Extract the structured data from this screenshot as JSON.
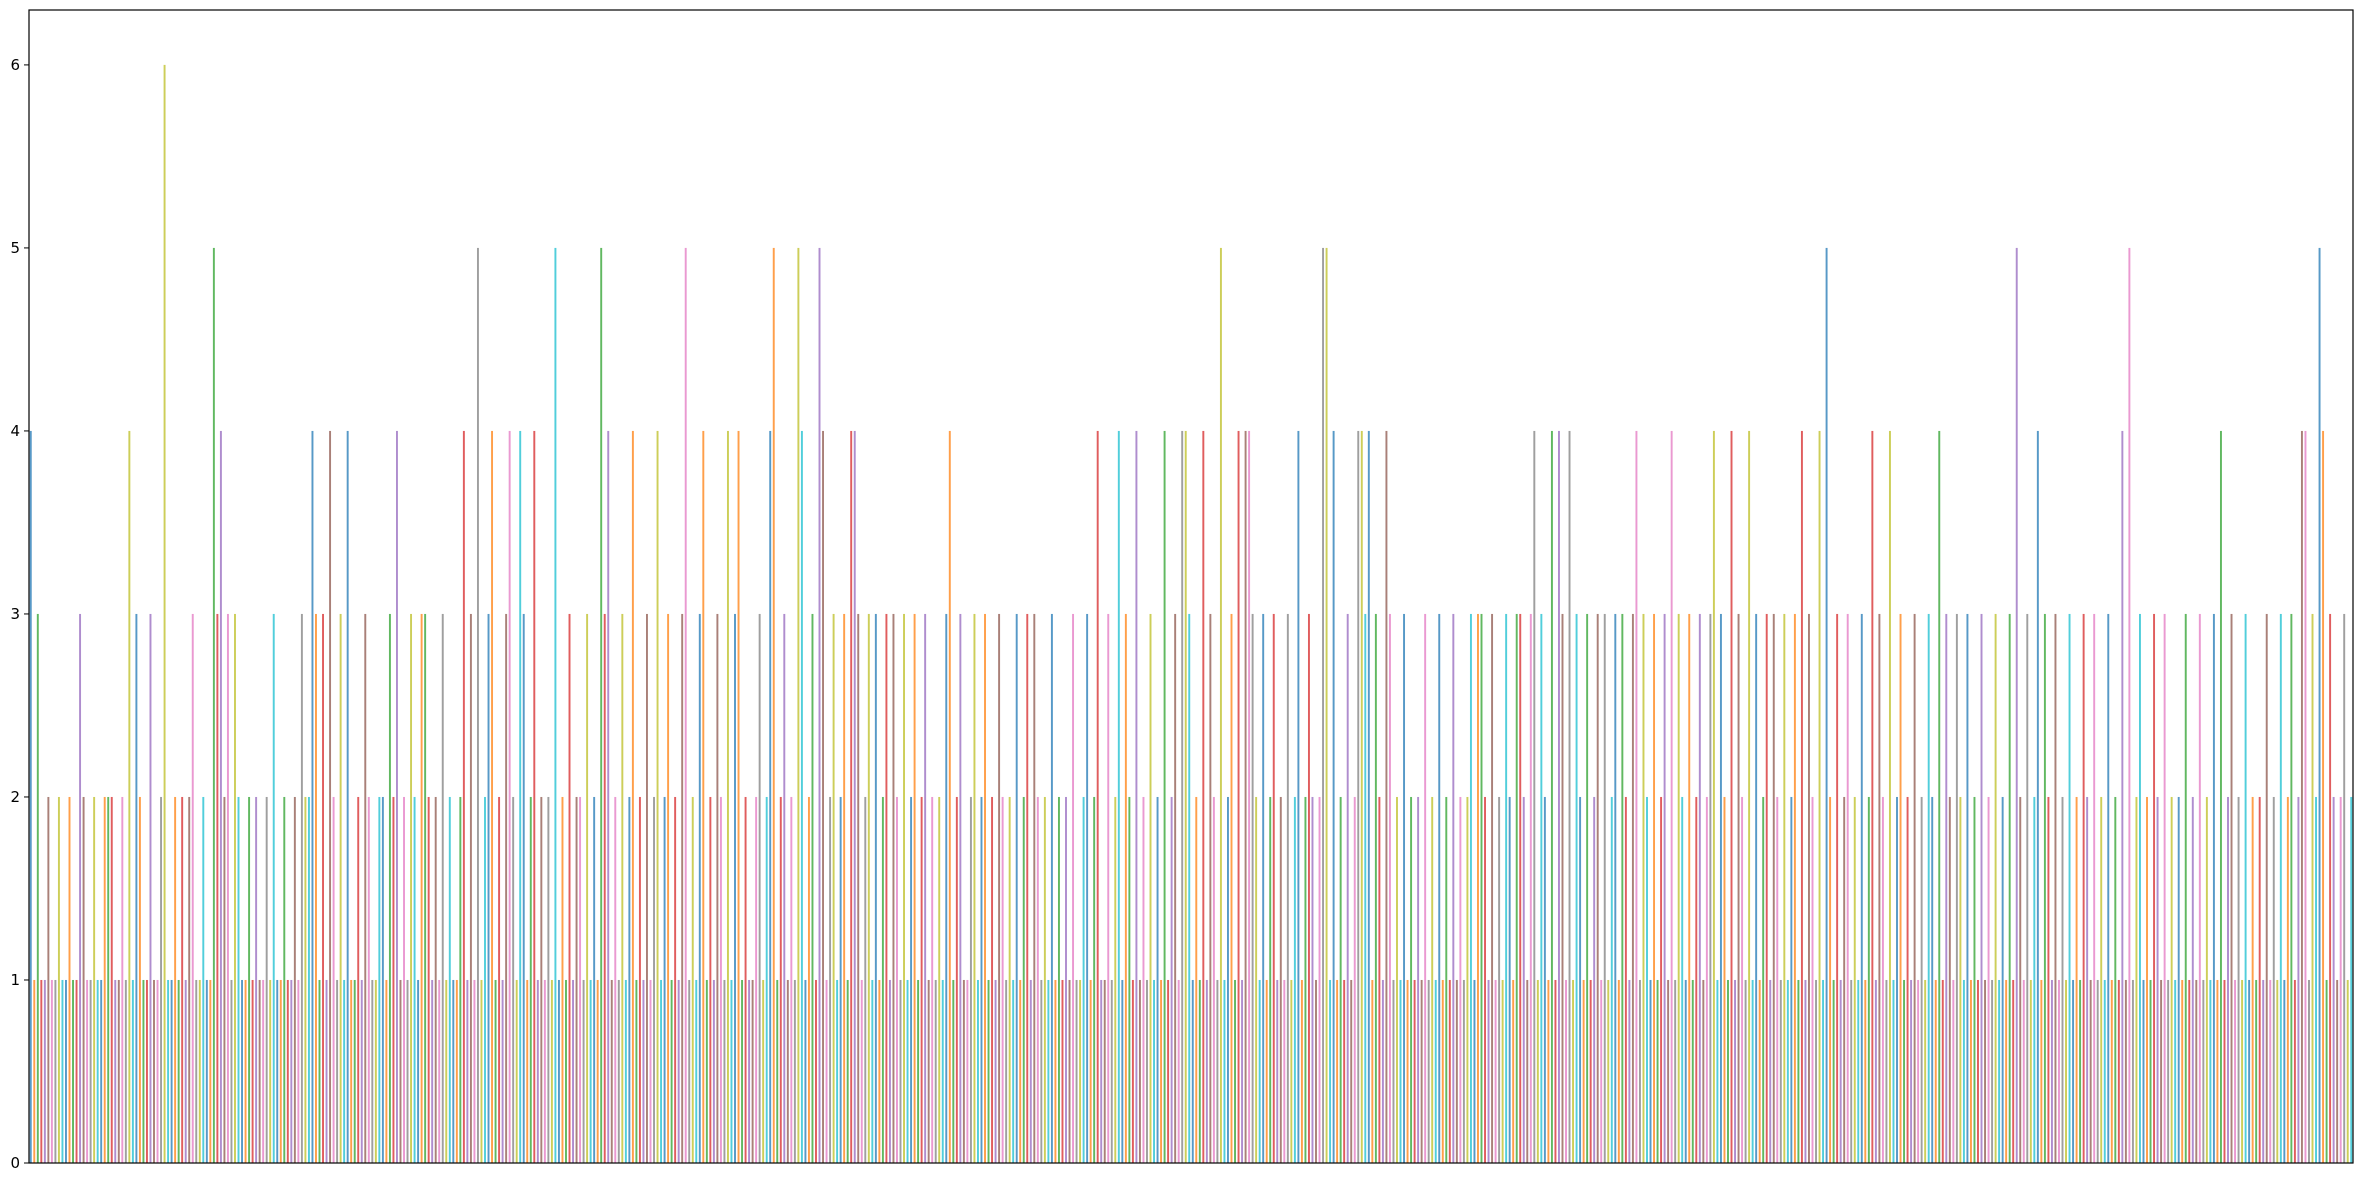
{
  "chart_data": {
    "type": "bar",
    "title": "",
    "xlabel": "",
    "ylabel": "",
    "ylim": [
      0,
      6.3
    ],
    "xticks_visible": false,
    "grid": false,
    "legend": "none",
    "yticks": [
      {
        "value": 0,
        "label": "0"
      },
      {
        "value": 1,
        "label": "1"
      },
      {
        "value": 2,
        "label": "2"
      },
      {
        "value": 3,
        "label": "3"
      },
      {
        "value": 4,
        "label": "4"
      },
      {
        "value": 5,
        "label": "5"
      },
      {
        "value": 6,
        "label": "6"
      }
    ],
    "palette": [
      "#1f77b4",
      "#ff7f0e",
      "#2ca02c",
      "#d62728",
      "#9467bd",
      "#8c564b",
      "#e377c2",
      "#7f7f7f",
      "#bcbd22",
      "#17becf"
    ],
    "values": [
      4,
      1,
      3,
      1,
      1,
      2,
      1,
      1,
      2,
      1,
      1,
      2,
      1,
      1,
      3,
      2,
      1,
      1,
      2,
      1,
      1,
      2,
      2,
      2,
      1,
      1,
      2,
      1,
      4,
      1,
      3,
      2,
      1,
      1,
      3,
      1,
      1,
      2,
      6,
      1,
      1,
      2,
      1,
      2,
      1,
      2,
      3,
      1,
      1,
      2,
      1,
      1,
      5,
      3,
      4,
      2,
      3,
      1,
      3,
      2,
      1,
      1,
      2,
      1,
      2,
      1,
      1,
      2,
      1,
      3,
      1,
      1,
      2,
      1,
      1,
      2,
      1,
      3,
      2,
      2,
      4,
      3,
      1,
      3,
      1,
      4,
      2,
      1,
      3,
      1,
      4,
      1,
      1,
      2,
      1,
      3,
      2,
      1,
      1,
      2,
      2,
      1,
      3,
      2,
      4,
      1,
      2,
      1,
      3,
      2,
      1,
      3,
      3,
      2,
      1,
      2,
      1,
      3,
      1,
      2,
      1,
      1,
      2,
      4,
      1,
      3,
      1,
      5,
      1,
      2,
      3,
      4,
      1,
      2,
      1,
      3,
      4,
      2,
      1,
      4,
      3,
      1,
      2,
      4,
      1,
      2,
      1,
      2,
      1,
      5,
      1,
      2,
      1,
      3,
      1,
      2,
      2,
      1,
      3,
      1,
      2,
      1,
      5,
      3,
      4,
      1,
      2,
      1,
      3,
      1,
      2,
      4,
      1,
      2,
      1,
      3,
      1,
      2,
      4,
      1,
      2,
      3,
      1,
      2,
      1,
      3,
      5,
      1,
      2,
      1,
      3,
      4,
      1,
      2,
      1,
      3,
      2,
      1,
      4,
      1,
      3,
      4,
      1,
      2,
      1,
      1,
      2,
      3,
      1,
      2,
      4,
      5,
      1,
      2,
      3,
      1,
      2,
      1,
      5,
      4,
      1,
      2,
      3,
      1,
      5,
      4,
      1,
      2,
      3,
      1,
      2,
      3,
      1,
      4,
      4,
      3,
      1,
      2,
      3,
      1,
      3,
      1,
      2,
      3,
      1,
      3,
      2,
      1,
      3,
      1,
      2,
      3,
      1,
      2,
      3,
      1,
      2,
      1,
      2,
      1,
      3,
      4,
      1,
      2,
      3,
      1,
      1,
      2,
      3,
      1,
      2,
      3,
      1,
      2,
      1,
      3,
      2,
      1,
      2,
      1,
      3,
      1,
      2,
      3,
      1,
      3,
      2,
      1,
      2,
      1,
      3,
      1,
      2,
      1,
      2,
      1,
      3,
      1,
      1,
      2,
      3,
      1,
      2,
      4,
      1,
      1,
      3,
      1,
      2,
      4,
      1,
      3,
      2,
      1,
      4,
      1,
      2,
      1,
      3,
      1,
      2,
      1,
      4,
      1,
      2,
      3,
      1,
      4,
      4,
      3,
      1,
      2,
      1,
      4,
      1,
      3,
      2,
      1,
      5,
      1,
      2,
      3,
      1,
      4,
      1,
      4,
      4,
      3,
      2,
      1,
      3,
      1,
      2,
      3,
      1,
      2,
      1,
      3,
      1,
      2,
      4,
      1,
      2,
      3,
      2,
      1,
      2,
      5,
      5,
      1,
      4,
      1,
      2,
      1,
      3,
      1,
      2,
      4,
      4,
      3,
      4,
      1,
      3,
      2,
      1,
      4,
      3,
      1,
      2,
      1,
      3,
      1,
      2,
      1,
      2,
      1,
      3,
      1,
      2,
      1,
      3,
      1,
      2,
      1,
      3,
      1,
      2,
      1,
      2,
      3,
      1,
      3,
      3,
      2,
      1,
      3,
      1,
      2,
      1,
      3,
      2,
      1,
      3,
      3,
      2,
      1,
      3,
      4,
      1,
      3,
      2,
      1,
      4,
      1,
      4,
      3,
      1,
      4,
      1,
      3,
      2,
      1,
      3,
      1,
      2,
      3,
      1,
      3,
      1,
      2,
      3,
      1,
      3,
      2,
      1,
      3,
      4,
      1,
      3,
      2,
      1,
      3,
      1,
      2,
      3,
      1,
      4,
      1,
      3,
      2,
      1,
      3,
      1,
      2,
      3,
      1,
      2,
      3,
      4,
      1,
      3,
      2,
      1,
      4,
      1,
      3,
      2,
      1,
      4,
      1,
      3,
      1,
      2,
      3,
      1,
      3,
      2,
      1,
      3,
      1,
      2,
      3,
      1,
      4,
      1,
      3,
      2,
      1,
      4,
      1,
      5,
      2,
      1,
      3,
      1,
      2,
      3,
      1,
      2,
      1,
      3,
      1,
      2,
      4,
      1,
      3,
      2,
      1,
      4,
      1,
      2,
      3,
      1,
      2,
      1,
      3,
      1,
      2,
      1,
      3,
      2,
      1,
      4,
      1,
      3,
      2,
      1,
      3,
      2,
      1,
      3,
      1,
      2,
      1,
      3,
      1,
      2,
      1,
      3,
      1,
      2,
      1,
      3,
      1,
      5,
      2,
      1,
      3,
      1,
      2,
      4,
      1,
      3,
      2,
      1,
      3,
      1,
      2,
      1,
      3,
      1,
      2,
      1,
      3,
      2,
      1,
      3,
      1,
      2,
      1,
      3,
      1,
      2,
      1,
      4,
      1,
      5,
      1,
      2,
      3,
      1,
      2,
      1,
      3,
      2,
      1,
      3,
      1,
      2,
      1,
      2,
      1,
      3,
      1,
      2,
      1,
      3,
      1,
      2,
      1,
      3,
      1,
      4,
      1,
      2,
      3,
      1,
      2,
      1,
      3,
      1,
      2,
      1,
      2,
      1,
      3,
      1,
      2,
      1,
      3,
      1,
      2,
      3,
      1,
      2,
      4,
      4,
      1,
      3,
      2,
      5,
      4,
      1,
      3,
      2,
      1,
      2,
      3,
      1,
      2
    ]
  }
}
